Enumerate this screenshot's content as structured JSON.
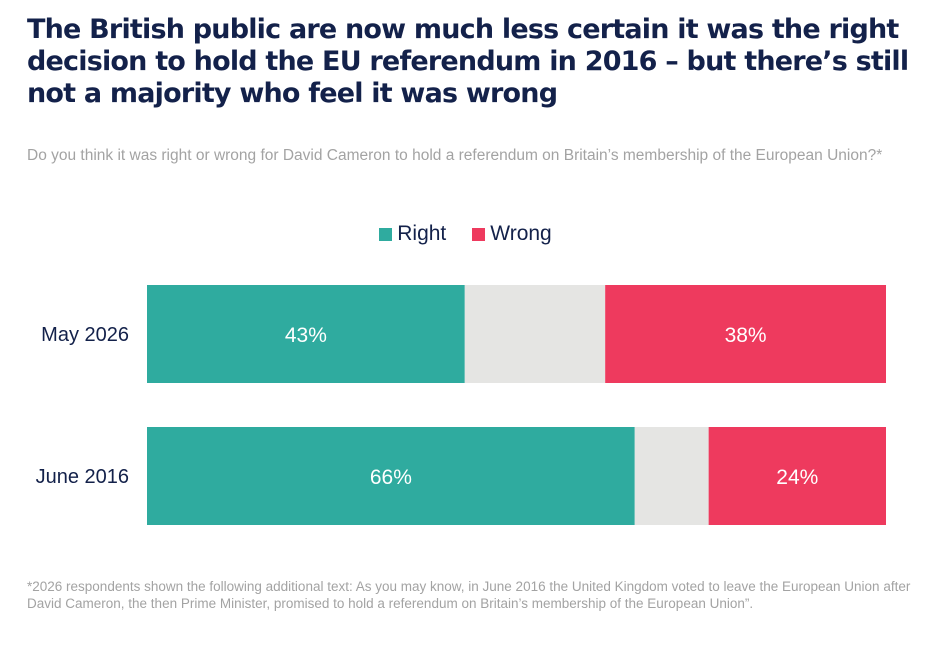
{
  "header": {
    "title": "The British public are now much less certain it was the right decision to hold the EU referendum in 2016 – but there’s still not a majority who feel it was wrong",
    "subtitle": "Do you think it was right or wrong for David Cameron to hold a referendum on Britain’s membership of the European Union?*"
  },
  "footnote": "*2026 respondents shown the following additional text: As you may know, in June 2016 the United Kingdom voted to leave the European Union after David Cameron, the then Prime Minister, promised to hold a referendum on Britain’s membership of the European Union”.",
  "chart_data": {
    "type": "bar",
    "orientation": "horizontal",
    "stacked": true,
    "legend_position": "top-center",
    "grid": false,
    "categories": [
      "May 2026",
      "June 2016"
    ],
    "series": [
      {
        "name": "Right",
        "color": "#2fab9f",
        "values": [
          43,
          66
        ],
        "labels": [
          "43%",
          "66%"
        ]
      },
      {
        "name": "",
        "color": "#e5e5e3",
        "values": [
          19,
          10
        ],
        "labels": [
          "",
          ""
        ]
      },
      {
        "name": "Wrong",
        "color": "#ee3a5e",
        "values": [
          38,
          24
        ],
        "labels": [
          "38%",
          "24%"
        ]
      }
    ],
    "xlim": [
      0,
      100
    ]
  }
}
